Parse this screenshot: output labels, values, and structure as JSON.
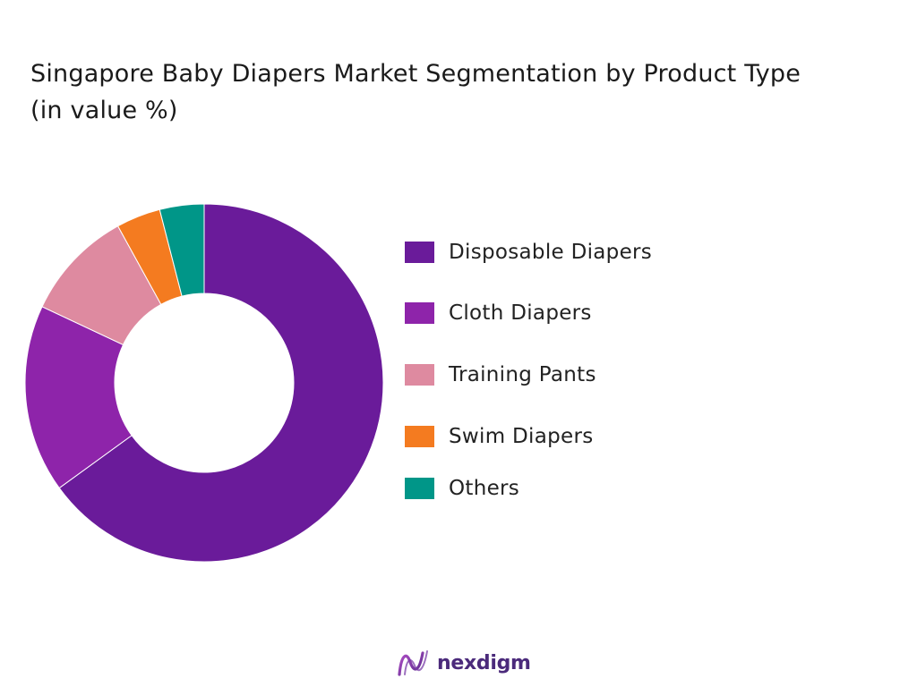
{
  "chart_data": {
    "type": "pie",
    "title": "Singapore Baby Diapers Market Segmentation by Product Type",
    "subtitle": "(in value %)",
    "donut": true,
    "legend_position": "right",
    "categories": [
      "Disposable Diapers",
      "Cloth Diapers",
      "Training Pants",
      "Swim Diapers",
      "Others"
    ],
    "values": [
      65,
      17,
      10,
      4,
      4
    ],
    "colors": [
      "#6a1b9a",
      "#8e24aa",
      "#de8aa0",
      "#f47b20",
      "#009688"
    ]
  },
  "brand": {
    "name": "nexdigm"
  }
}
